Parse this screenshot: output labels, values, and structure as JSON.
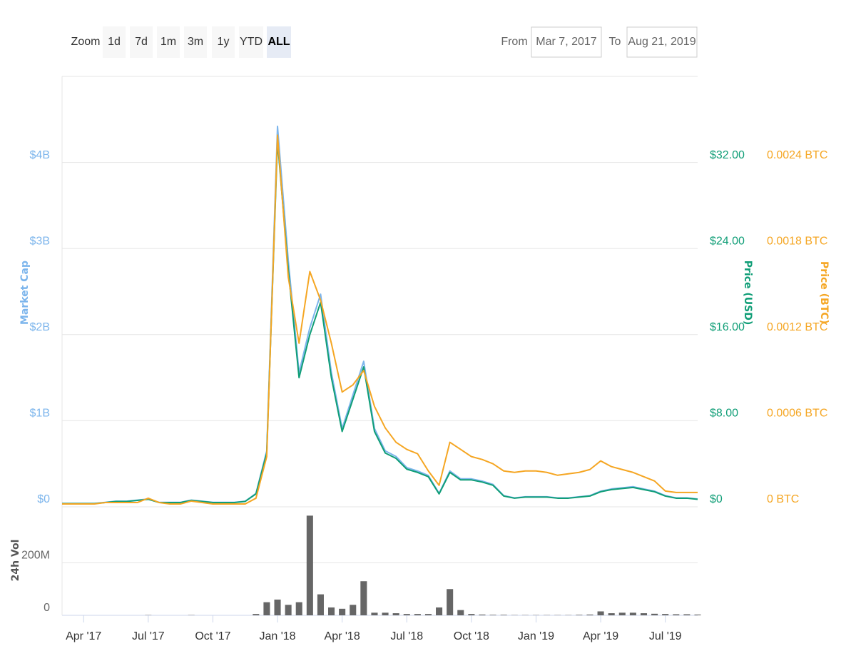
{
  "controls": {
    "zoom_label": "Zoom",
    "zoom_buttons": [
      "1d",
      "7d",
      "1m",
      "3m",
      "1y",
      "YTD",
      "ALL"
    ],
    "selected": "ALL",
    "from_label": "From",
    "from": "Mar 7, 2017",
    "to_label": "To",
    "to": "Aug 21, 2019"
  },
  "chart_data": [
    {
      "type": "line",
      "categories": [
        null,
        null,
        "Apr '17",
        null,
        null,
        null,
        null,
        null,
        "Jul '17",
        null,
        null,
        null,
        null,
        null,
        "Oct '17",
        null,
        null,
        null,
        null,
        null,
        "Jan '18",
        null,
        null,
        null,
        null,
        null,
        "Apr '18",
        null,
        null,
        null,
        null,
        null,
        "Jul '18",
        null,
        null,
        null,
        null,
        null,
        "Oct '18",
        null,
        null,
        null,
        null,
        null,
        "Jan '19",
        null,
        null,
        null,
        null,
        null,
        "Apr '19",
        null,
        null,
        null,
        null,
        null,
        "Jul '19",
        null,
        null,
        null
      ],
      "series": [
        {
          "name": "Market Cap",
          "color": "#7cb5ec",
          "axis": "y",
          "values": [
            39000000.0,
            39000000.0,
            39000000.0,
            39000000.0,
            52000000.0,
            65000000.0,
            65000000.0,
            78000000.0,
            91000000.0,
            52000000.0,
            52000000.0,
            52000000.0,
            78000000.0,
            65000000.0,
            52000000.0,
            52000000.0,
            52000000.0,
            65000000.0,
            156000000.0,
            650000000.0,
            4420000000.0,
            2860000000.0,
            1560000000.0,
            2080000000.0,
            2470000000.0,
            1560000000.0,
            910000000.0,
            1300000000.0,
            1690000000.0,
            910000000.0,
            650000000.0,
            585000000.0,
            455000000.0,
            416000000.0,
            364000000.0,
            156000000.0,
            416000000.0,
            325000000.0,
            325000000.0,
            299000000.0,
            260000000.0,
            130000000.0,
            104000000.0,
            117000000.0,
            117000000.0,
            117000000.0,
            104000000.0,
            104000000.0,
            117000000.0,
            130000000.0,
            182000000.0,
            208000000.0,
            221000000.0,
            234000000.0,
            208000000.0,
            182000000.0,
            130000000.0,
            104000000.0,
            104000000.0,
            91000000.0
          ]
        },
        {
          "name": "Price (USD)",
          "color": "#109e77",
          "axis": "y2",
          "values": [
            0.3,
            0.3,
            0.3,
            0.3,
            0.4,
            0.5,
            0.5,
            0.6,
            0.7,
            0.4,
            0.4,
            0.4,
            0.6,
            0.5,
            0.4,
            0.4,
            0.4,
            0.5,
            1.2,
            5.0,
            34,
            22,
            12,
            16,
            19,
            12,
            7,
            10,
            13,
            7,
            5,
            4.5,
            3.5,
            3.2,
            2.8,
            1.2,
            3.2,
            2.5,
            2.5,
            2.3,
            2.0,
            1.0,
            0.8,
            0.9,
            0.9,
            0.9,
            0.8,
            0.8,
            0.9,
            1.0,
            1.4,
            1.6,
            1.7,
            1.8,
            1.6,
            1.4,
            1.0,
            0.8,
            0.8,
            0.7
          ]
        },
        {
          "name": "Price (BTC)",
          "color": "#f5a623",
          "axis": "y3",
          "values": [
            2e-05,
            2e-05,
            2e-05,
            2e-05,
            3e-05,
            3e-05,
            3e-05,
            3e-05,
            6e-05,
            3e-05,
            2e-05,
            2e-05,
            4e-05,
            3e-05,
            2e-05,
            2e-05,
            2e-05,
            2e-05,
            6e-05,
            0.00035,
            0.00259,
            0.0016,
            0.00114,
            0.00164,
            0.00144,
            0.00114,
            0.0008,
            0.00085,
            0.00095,
            0.0007,
            0.00055,
            0.00045,
            0.0004,
            0.00037,
            0.00025,
            0.00015,
            0.00045,
            0.0004,
            0.00035,
            0.00033,
            0.0003,
            0.00025,
            0.00024,
            0.00025,
            0.00025,
            0.00024,
            0.00022,
            0.00023,
            0.00024,
            0.00026,
            0.00032,
            0.00028,
            0.00026,
            0.00024,
            0.00021,
            0.00018,
            0.00011,
            0.0001,
            0.0001,
            0.0001
          ]
        }
      ],
      "ylim": [
        0,
        5000000000.0
      ],
      "yticks": [
        {
          "value": 0,
          "label": "$0"
        },
        {
          "value": 1000000000.0,
          "label": "$1B"
        },
        {
          "value": 2000000000.0,
          "label": "$2B"
        },
        {
          "value": 3000000000.0,
          "label": "$3B"
        },
        {
          "value": 4000000000.0,
          "label": "$4B"
        }
      ],
      "y2lim": [
        0,
        40
      ],
      "y2ticks": [
        {
          "value": 0,
          "label": "$0"
        },
        {
          "value": 8,
          "label": "$8.00"
        },
        {
          "value": 16,
          "label": "$16.00"
        },
        {
          "value": 24,
          "label": "$24.00"
        },
        {
          "value": 32,
          "label": "$32.00"
        }
      ],
      "y3lim": [
        0,
        0.003
      ],
      "y3ticks": [
        {
          "value": 0,
          "label": "0 BTC"
        },
        {
          "value": 0.0006,
          "label": "0.0006 BTC"
        },
        {
          "value": 0.0012,
          "label": "0.0012 BTC"
        },
        {
          "value": 0.0018,
          "label": "0.0018 BTC"
        },
        {
          "value": 0.0024,
          "label": "0.0024 BTC"
        }
      ],
      "grid": true
    },
    {
      "type": "bar",
      "ylabel": "24h Vol",
      "color": "#666666",
      "values": [
        0,
        0,
        0,
        0,
        0,
        0,
        0,
        0,
        1000000.0,
        0,
        0,
        0,
        1000000.0,
        0,
        0,
        0,
        0,
        0,
        5000000.0,
        50000000.0,
        60000000.0,
        40000000.0,
        50000000.0,
        380000000.0,
        80000000.0,
        30000000.0,
        25000000.0,
        40000000.0,
        130000000.0,
        10000000.0,
        10000000.0,
        8000000.0,
        5000000.0,
        5000000.0,
        5000000.0,
        30000000.0,
        100000000.0,
        20000000.0,
        5000000.0,
        3000000.0,
        2000000.0,
        2000000.0,
        1000000.0,
        1000000.0,
        1000000.0,
        1000000.0,
        1000000.0,
        1000000.0,
        2000000.0,
        3000000.0,
        15000000.0,
        8000000.0,
        10000000.0,
        10000000.0,
        8000000.0,
        6000000.0,
        5000000.0,
        4000000.0,
        4000000.0,
        3000000.0
      ],
      "ylim": [
        0,
        400000000.0
      ],
      "yticks": [
        0,
        {
          "value": 200000000.0,
          "label": "200M"
        }
      ],
      "grid": true
    }
  ]
}
